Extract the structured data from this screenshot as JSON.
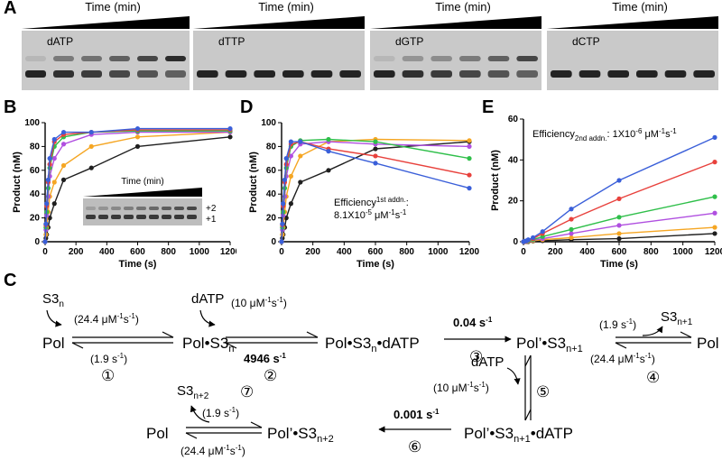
{
  "panel_labels": {
    "A": "A",
    "B": "B",
    "C": "C",
    "D": "D",
    "E": "E"
  },
  "gels": {
    "time_label": "Time (min)",
    "lanes": [
      "dATP",
      "dTTP",
      "dGTP",
      "dCTP"
    ],
    "upper_band_intensity": [
      [
        0.1,
        0.45,
        0.5,
        0.6,
        0.75,
        0.9
      ],
      [
        0,
        0,
        0,
        0,
        0,
        0
      ],
      [
        0.1,
        0.3,
        0.35,
        0.45,
        0.6,
        0.75
      ],
      [
        0,
        0,
        0,
        0,
        0,
        0
      ]
    ]
  },
  "chart_data": [
    {
      "type": "scatter",
      "id": "B",
      "xlabel": "Time (s)",
      "ylabel": "Product (nM)",
      "xlim": [
        0,
        1200
      ],
      "ylim": [
        0,
        100
      ],
      "xticks": [
        0,
        200,
        400,
        600,
        800,
        1000,
        1200
      ],
      "yticks": [
        0,
        20,
        40,
        60,
        80,
        100
      ],
      "x": [
        0,
        5,
        10,
        20,
        30,
        60,
        120,
        300,
        600,
        1200
      ],
      "series": [
        {
          "color": "#1f1f1f",
          "values": [
            0,
            3,
            6,
            12,
            20,
            32,
            52,
            62,
            80,
            88
          ]
        },
        {
          "color": "#f5a623",
          "values": [
            0,
            6,
            12,
            25,
            38,
            50,
            64,
            80,
            88,
            92
          ]
        },
        {
          "color": "#b04fe0",
          "values": [
            0,
            10,
            22,
            38,
            55,
            70,
            82,
            90,
            92,
            92
          ]
        },
        {
          "color": "#2fbf4a",
          "values": [
            0,
            12,
            25,
            45,
            62,
            80,
            88,
            92,
            93,
            93
          ]
        },
        {
          "color": "#e8413c",
          "values": [
            0,
            14,
            30,
            50,
            65,
            84,
            90,
            92,
            94,
            94
          ]
        },
        {
          "color": "#3a5fd9",
          "values": [
            0,
            15,
            32,
            52,
            70,
            86,
            92,
            92,
            95,
            95
          ]
        }
      ],
      "inset": {
        "time_label": "Time (min)",
        "bands": [
          "+2",
          "+1"
        ]
      }
    },
    {
      "type": "scatter",
      "id": "D",
      "xlabel": "Time (s)",
      "ylabel": "Product (nM)",
      "xlim": [
        0,
        1200
      ],
      "ylim": [
        0,
        100
      ],
      "xticks": [
        0,
        200,
        400,
        600,
        800,
        1000,
        1200
      ],
      "yticks": [
        0,
        20,
        40,
        60,
        80,
        100
      ],
      "x": [
        0,
        5,
        10,
        20,
        30,
        60,
        120,
        300,
        600,
        1200
      ],
      "series": [
        {
          "color": "#1f1f1f",
          "values": [
            0,
            3,
            6,
            12,
            20,
            32,
            50,
            60,
            78,
            84
          ]
        },
        {
          "color": "#f5a623",
          "values": [
            0,
            6,
            12,
            25,
            38,
            55,
            72,
            84,
            86,
            85
          ]
        },
        {
          "color": "#b04fe0",
          "values": [
            0,
            10,
            22,
            38,
            55,
            72,
            82,
            84,
            82,
            80
          ]
        },
        {
          "color": "#2fbf4a",
          "values": [
            0,
            12,
            25,
            45,
            62,
            80,
            85,
            86,
            84,
            70
          ]
        },
        {
          "color": "#e8413c",
          "values": [
            0,
            14,
            30,
            50,
            65,
            82,
            84,
            78,
            72,
            56
          ]
        },
        {
          "color": "#3a5fd9",
          "values": [
            0,
            15,
            32,
            52,
            70,
            84,
            84,
            76,
            66,
            45
          ]
        }
      ],
      "annotation": {
        "line1": "Efficiency",
        "sup": "1st addn.",
        "colon": ":",
        "line2": "8.1X10",
        "exp": "-5",
        "unit_a": " μM",
        "unit_exp": "-1",
        "unit_b": "s",
        "unit_exp2": "-1"
      }
    },
    {
      "type": "scatter",
      "id": "E",
      "xlabel": "Time (s)",
      "ylabel": "Product (nM)",
      "xlim": [
        0,
        1200
      ],
      "ylim": [
        0,
        60
      ],
      "xticks": [
        0,
        200,
        400,
        600,
        800,
        1000,
        1200
      ],
      "yticks": [
        0,
        20,
        40,
        60
      ],
      "x": [
        0,
        5,
        10,
        20,
        30,
        60,
        120,
        300,
        600,
        1200
      ],
      "series": [
        {
          "color": "#1f1f1f",
          "values": [
            0,
            0,
            0,
            0,
            0,
            0.3,
            0.5,
            1,
            1.5,
            4
          ]
        },
        {
          "color": "#f5a623",
          "values": [
            0,
            0,
            0,
            0.1,
            0.2,
            0.5,
            1,
            2,
            4,
            7
          ]
        },
        {
          "color": "#b04fe0",
          "values": [
            0,
            0,
            0.1,
            0.2,
            0.4,
            0.8,
            1.5,
            4,
            8,
            14
          ]
        },
        {
          "color": "#2fbf4a",
          "values": [
            0,
            0.1,
            0.2,
            0.3,
            0.5,
            1,
            2.5,
            6,
            12,
            22
          ]
        },
        {
          "color": "#e8413c",
          "values": [
            0,
            0.1,
            0.2,
            0.4,
            0.8,
            1.5,
            4,
            11,
            21,
            39
          ]
        },
        {
          "color": "#3a5fd9",
          "values": [
            0,
            0.2,
            0.3,
            0.5,
            1,
            2,
            5,
            16,
            30,
            51
          ]
        }
      ],
      "annotation": {
        "line1": "Efficiency",
        "sub": "2nd addn.",
        "colon": ":",
        "line2": " 1X10",
        "exp": "-6",
        "unit_a": " μM",
        "unit_exp": "-1",
        "unit_b": "s",
        "unit_exp2": "-1"
      }
    }
  ],
  "scheme": {
    "S3n": "S3",
    "S3n_sub": "n",
    "pol": "Pol",
    "pol_s3n": "Pol•S3",
    "pol_s3n_datp": "Pol•S3",
    "datp_suffix": "•dATP",
    "datp": "dATP",
    "polp_s3n1": "Pol’•S3",
    "polp_s3n1_datp": "Pol’•S3",
    "polp_s3n2": "Pol’•S3",
    "s3n1": "S3",
    "s3n2": "S3",
    "sub_n": "n",
    "sub_n1": "n+1",
    "sub_n2": "n+2",
    "k1f": "(24.4 μM",
    "k1f_exp": "-1",
    "k1f_end": "s",
    "k1f_exp2": "-1",
    "k1f_close": ")",
    "k1r": "(1.9 s",
    "k1r_exp": "-1",
    "k1r_close": ")",
    "k2f": "(10 μM",
    "k2f_exp": "-1",
    "k2f_end": "s",
    "k2f_exp2": "-1",
    "k2f_close": ")",
    "k2r": "4946 s",
    "k2r_exp": "-1",
    "k3": "0.04 s",
    "k3_exp": "-1",
    "k6": "0.001 s",
    "k6_exp": "-1",
    "step1": "①",
    "step2": "②",
    "step3": "③",
    "step4": "④",
    "step5": "⑤",
    "step6": "⑥",
    "step7": "⑦"
  }
}
